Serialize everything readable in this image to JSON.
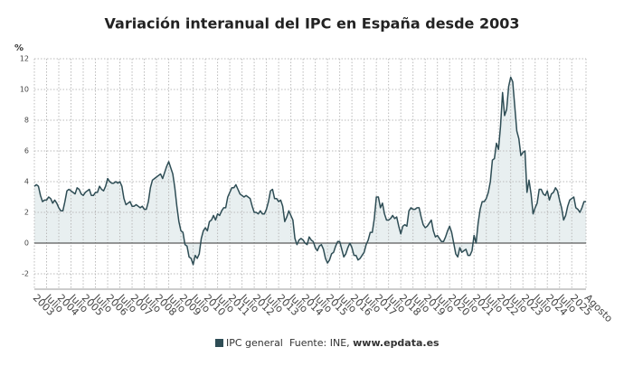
{
  "chart_data": {
    "type": "area-line",
    "title": "Variación interanual del IPC en España desde 2003",
    "y_label": "%",
    "source": "Fuente: INE,",
    "source_link": "www.epdata.es",
    "ylim": [
      -3,
      12
    ],
    "yticks": [
      -2,
      0,
      2,
      4,
      6,
      8,
      10,
      12
    ],
    "grid": true,
    "fill_color": "#e8eff0",
    "categories": [
      "2003",
      null,
      null,
      null,
      null,
      null,
      "Julio",
      null,
      null,
      null,
      null,
      null,
      "2004",
      null,
      null,
      null,
      null,
      null,
      "Julio",
      null,
      null,
      null,
      null,
      null,
      "2005",
      null,
      null,
      null,
      null,
      null,
      "Julio",
      null,
      null,
      null,
      null,
      null,
      "2006",
      null,
      null,
      null,
      null,
      null,
      "Julio",
      null,
      null,
      null,
      null,
      null,
      "2007",
      null,
      null,
      null,
      null,
      null,
      "Julio",
      null,
      null,
      null,
      null,
      null,
      "2008",
      null,
      null,
      null,
      null,
      null,
      "Julio",
      null,
      null,
      null,
      null,
      null,
      "2009",
      null,
      null,
      null,
      null,
      null,
      "Julio",
      null,
      null,
      null,
      null,
      null,
      "2010",
      null,
      null,
      null,
      null,
      null,
      "Julio",
      null,
      null,
      null,
      null,
      null,
      "2011",
      null,
      null,
      null,
      null,
      null,
      "Julio",
      null,
      null,
      null,
      null,
      null,
      "2012",
      null,
      null,
      null,
      null,
      null,
      "Julio",
      null,
      null,
      null,
      null,
      null,
      "2013",
      null,
      null,
      null,
      null,
      null,
      "Julio",
      null,
      null,
      null,
      null,
      null,
      "2014",
      null,
      null,
      null,
      null,
      null,
      "Julio",
      null,
      null,
      null,
      null,
      null,
      "2015",
      null,
      null,
      null,
      null,
      null,
      "Julio",
      null,
      null,
      null,
      null,
      null,
      "2016",
      null,
      null,
      null,
      null,
      null,
      "Julio",
      null,
      null,
      null,
      null,
      null,
      "2017",
      null,
      null,
      null,
      null,
      null,
      "Julio",
      null,
      null,
      null,
      null,
      null,
      "2018",
      null,
      null,
      null,
      null,
      null,
      "Julio",
      null,
      null,
      null,
      null,
      null,
      "2019",
      null,
      null,
      null,
      null,
      null,
      "Julio",
      null,
      null,
      null,
      null,
      null,
      "2020",
      null,
      null,
      null,
      null,
      null,
      "Julio",
      null,
      null,
      null,
      null,
      null,
      "2021",
      null,
      null,
      null,
      null,
      null,
      "Julio",
      null,
      null,
      null,
      null,
      null,
      "2022",
      null,
      null,
      null,
      null,
      null,
      "Julio",
      null,
      null,
      null,
      null,
      null,
      "2023",
      null,
      null,
      null,
      null,
      null,
      "Julio",
      null,
      null,
      null,
      null,
      null,
      "2024",
      null,
      null,
      null,
      null,
      null,
      "Julio",
      null,
      null,
      null,
      null,
      null,
      "2025",
      null,
      null,
      null,
      null,
      null,
      null,
      "Agosto"
    ],
    "series": [
      {
        "name": "IPC general",
        "color": "#2e4d55",
        "values": [
          3.7,
          3.8,
          3.7,
          3.1,
          2.7,
          2.8,
          2.8,
          3.0,
          2.9,
          2.6,
          2.8,
          2.6,
          2.3,
          2.1,
          2.1,
          2.7,
          3.4,
          3.5,
          3.4,
          3.3,
          3.2,
          3.6,
          3.5,
          3.2,
          3.1,
          3.3,
          3.4,
          3.5,
          3.1,
          3.1,
          3.3,
          3.3,
          3.7,
          3.5,
          3.4,
          3.7,
          4.2,
          4.0,
          3.9,
          3.9,
          4.0,
          3.9,
          4.0,
          3.7,
          2.9,
          2.5,
          2.6,
          2.7,
          2.4,
          2.4,
          2.5,
          2.4,
          2.3,
          2.4,
          2.2,
          2.2,
          2.7,
          3.6,
          4.1,
          4.2,
          4.3,
          4.4,
          4.5,
          4.2,
          4.6,
          5.0,
          5.3,
          4.9,
          4.5,
          3.6,
          2.4,
          1.4,
          0.8,
          0.7,
          -0.1,
          -0.2,
          -0.9,
          -1.0,
          -1.4,
          -0.8,
          -1.0,
          -0.7,
          0.3,
          0.8,
          1.0,
          0.8,
          1.4,
          1.5,
          1.8,
          1.5,
          1.9,
          1.8,
          2.1,
          2.3,
          2.3,
          3.0,
          3.3,
          3.6,
          3.6,
          3.8,
          3.5,
          3.2,
          3.1,
          3.0,
          3.1,
          3.0,
          2.9,
          2.4,
          2.0,
          2.0,
          1.9,
          2.1,
          1.9,
          1.9,
          2.2,
          2.7,
          3.4,
          3.5,
          2.9,
          2.9,
          2.7,
          2.8,
          2.4,
          1.4,
          1.7,
          2.1,
          1.8,
          1.5,
          0.3,
          -0.1,
          0.2,
          0.3,
          0.2,
          0.0,
          -0.1,
          0.4,
          0.2,
          0.1,
          -0.3,
          -0.5,
          -0.2,
          -0.1,
          -0.4,
          -1.0,
          -1.3,
          -1.1,
          -0.7,
          -0.6,
          -0.2,
          0.1,
          0.1,
          -0.4,
          -0.9,
          -0.7,
          -0.3,
          0.0,
          -0.3,
          -0.8,
          -0.8,
          -1.1,
          -1.0,
          -0.8,
          -0.6,
          -0.1,
          0.2,
          0.7,
          0.7,
          1.6,
          3.0,
          3.0,
          2.3,
          2.6,
          1.9,
          1.5,
          1.5,
          1.6,
          1.8,
          1.6,
          1.7,
          1.1,
          0.6,
          1.1,
          1.2,
          1.1,
          2.1,
          2.3,
          2.2,
          2.2,
          2.3,
          2.3,
          1.7,
          1.2,
          1.0,
          1.1,
          1.3,
          1.5,
          0.8,
          0.4,
          0.5,
          0.3,
          0.1,
          0.1,
          0.4,
          0.8,
          1.1,
          0.7,
          0.0,
          -0.7,
          -0.9,
          -0.3,
          -0.6,
          -0.5,
          -0.4,
          -0.8,
          -0.8,
          -0.5,
          0.5,
          0.0,
          1.3,
          2.2,
          2.7,
          2.7,
          2.9,
          3.3,
          4.0,
          5.4,
          5.5,
          6.5,
          6.1,
          7.6,
          9.8,
          8.3,
          8.7,
          10.2,
          10.8,
          10.5,
          8.9,
          7.3,
          6.8,
          5.7,
          5.9,
          6.0,
          3.3,
          4.1,
          3.2,
          1.9,
          2.3,
          2.6,
          3.5,
          3.5,
          3.2,
          3.1,
          3.4,
          2.8,
          3.2,
          3.3,
          3.6,
          3.4,
          2.8,
          2.3,
          1.5,
          1.8,
          2.4,
          2.8,
          2.9,
          3.0,
          2.3,
          2.2,
          2.0,
          2.3,
          2.7,
          2.7
        ]
      }
    ]
  }
}
